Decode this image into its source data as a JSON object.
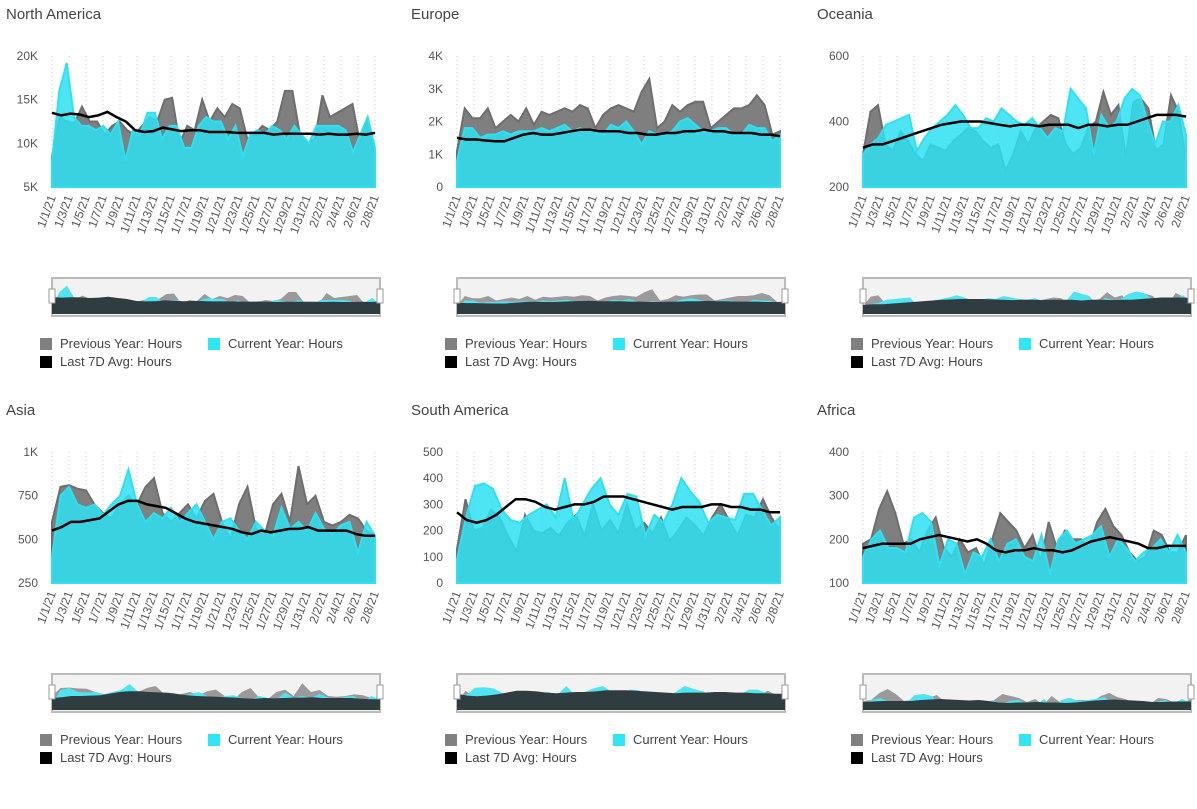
{
  "legend": {
    "prev": "Previous Year: Hours",
    "curr": "Current Year: Hours",
    "avg": "Last 7D Avg: Hours"
  },
  "colors": {
    "prev": "#7f7f7f",
    "curr": "#2ee0f2",
    "avg": "#000000"
  },
  "x_labels": [
    "1/1/21",
    "1/3/21",
    "1/5/21",
    "1/7/21",
    "1/9/21",
    "1/11/21",
    "1/13/21",
    "1/15/21",
    "1/17/21",
    "1/19/21",
    "1/21/21",
    "1/23/21",
    "1/25/21",
    "1/27/21",
    "1/29/21",
    "1/31/21",
    "2/2/21",
    "2/4/21",
    "2/6/21",
    "2/8/21"
  ],
  "chart_data": [
    {
      "type": "area",
      "title": "North America",
      "ylim": [
        5000,
        20000
      ],
      "yticks": [
        5000,
        10000,
        15000,
        20000
      ],
      "ytick_labels": [
        "5K",
        "10K",
        "15K",
        "20K"
      ],
      "grid": "vertical-dotted",
      "legend_position": "bottom",
      "series": [
        {
          "name": "Previous Year: Hours",
          "values": [
            8500,
            13000,
            12500,
            12300,
            14200,
            12500,
            12500,
            11000,
            12000,
            12500,
            11500,
            11000,
            12000,
            13000,
            12500,
            15000,
            15200,
            10000,
            12000,
            11500,
            15000,
            12500,
            14000,
            13000,
            14500,
            14000,
            10500,
            11000,
            12000,
            11500,
            12500,
            16000,
            16000,
            11000,
            10000,
            10500,
            15500,
            13000,
            13500,
            14000,
            14500,
            10000,
            13000,
            9000
          ]
        },
        {
          "name": "Current Year: Hours",
          "values": [
            8000,
            16000,
            19200,
            13000,
            12000,
            12000,
            11500,
            12000,
            11000,
            12500,
            8000,
            11500,
            11000,
            13500,
            13500,
            10500,
            12000,
            12000,
            9500,
            9500,
            12000,
            13000,
            12500,
            12500,
            10500,
            12000,
            8500,
            11000,
            11500,
            11000,
            12000,
            11500,
            10500,
            12000,
            11000,
            10000,
            12000,
            12000,
            12000,
            12000,
            11500,
            9000,
            11000,
            13000,
            9500
          ]
        },
        {
          "name": "Last 7D Avg: Hours",
          "values": [
            13500,
            13200,
            13400,
            13300,
            13000,
            13200,
            13600,
            13000,
            12500,
            11500,
            11300,
            11400,
            11800,
            11600,
            11400,
            11500,
            11500,
            11300,
            11300,
            11300,
            11200,
            11200,
            11200,
            11200,
            11000,
            11100,
            11100,
            11100,
            11100,
            11000,
            11100,
            11000,
            11000,
            11100,
            11000,
            11200
          ]
        }
      ]
    },
    {
      "type": "area",
      "title": "Europe",
      "ylim": [
        0,
        4000
      ],
      "yticks": [
        0,
        1000,
        2000,
        3000,
        4000
      ],
      "ytick_labels": [
        "0",
        "1K",
        "2K",
        "3K",
        "4K"
      ],
      "grid": "vertical-dotted",
      "legend_position": "bottom",
      "series": [
        {
          "name": "Previous Year: Hours",
          "values": [
            1100,
            2400,
            2100,
            2100,
            2400,
            1800,
            2000,
            2200,
            2000,
            2400,
            1900,
            2300,
            2200,
            2300,
            2400,
            2300,
            2500,
            2400,
            1800,
            2200,
            2400,
            2500,
            2400,
            2300,
            2900,
            3300,
            1800,
            2000,
            2500,
            2300,
            2500,
            2600,
            2600,
            1800,
            2000,
            2200,
            2400,
            2400,
            2500,
            2800,
            2500,
            1600,
            1700
          ]
        },
        {
          "name": "Current Year: Hours",
          "values": [
            800,
            1800,
            1800,
            1500,
            1600,
            1600,
            1700,
            1600,
            1700,
            1700,
            1700,
            1800,
            1700,
            1800,
            1900,
            1700,
            1800,
            1700,
            1700,
            1600,
            1900,
            1800,
            2000,
            1700,
            1300,
            1700,
            1600,
            1600,
            1700,
            2000,
            2100,
            1900,
            1700,
            1700,
            1800,
            1800,
            1600,
            1600,
            1900,
            1800,
            1800,
            1400,
            1600
          ]
        },
        {
          "name": "Last 7D Avg: Hours",
          "values": [
            1500,
            1450,
            1450,
            1420,
            1400,
            1400,
            1500,
            1600,
            1650,
            1600,
            1600,
            1650,
            1700,
            1750,
            1750,
            1700,
            1700,
            1700,
            1650,
            1650,
            1600,
            1600,
            1650,
            1650,
            1700,
            1700,
            1750,
            1700,
            1700,
            1650,
            1650,
            1650,
            1600,
            1600,
            1550
          ]
        }
      ]
    },
    {
      "type": "area",
      "title": "Oceania",
      "ylim": [
        200,
        600
      ],
      "yticks": [
        200,
        400,
        600
      ],
      "ytick_labels": [
        "200",
        "400",
        "600"
      ],
      "grid": "vertical-dotted",
      "legend_position": "bottom",
      "series": [
        {
          "name": "Previous Year: Hours",
          "values": [
            300,
            430,
            450,
            330,
            310,
            370,
            340,
            300,
            280,
            330,
            320,
            310,
            340,
            360,
            380,
            370,
            340,
            320,
            330,
            250,
            300,
            370,
            330,
            380,
            400,
            420,
            410,
            330,
            300,
            320,
            380,
            400,
            490,
            420,
            450,
            290,
            460,
            470,
            440,
            310,
            330,
            480,
            430,
            280
          ]
        },
        {
          "name": "Current Year: Hours",
          "values": [
            300,
            330,
            350,
            390,
            400,
            410,
            420,
            310,
            350,
            380,
            400,
            420,
            450,
            420,
            380,
            380,
            410,
            400,
            440,
            420,
            400,
            390,
            410,
            380,
            350,
            380,
            370,
            500,
            470,
            440,
            300,
            420,
            380,
            400,
            470,
            500,
            480,
            400,
            330,
            400,
            400,
            450,
            360
          ]
        },
        {
          "name": "Last 7D Avg: Hours",
          "values": [
            320,
            330,
            330,
            340,
            350,
            360,
            370,
            380,
            390,
            395,
            400,
            400,
            400,
            395,
            390,
            385,
            390,
            390,
            385,
            390,
            390,
            390,
            380,
            390,
            390,
            385,
            390,
            390,
            400,
            410,
            420,
            420,
            420,
            415
          ]
        }
      ]
    },
    {
      "type": "area",
      "title": "Asia",
      "ylim": [
        250,
        1000
      ],
      "yticks": [
        250,
        500,
        750,
        1000
      ],
      "ytick_labels": [
        "250",
        "500",
        "750",
        "1K"
      ],
      "grid": "vertical-dotted",
      "legend_position": "bottom",
      "series": [
        {
          "name": "Previous Year: Hours",
          "values": [
            600,
            800,
            810,
            790,
            780,
            700,
            650,
            620,
            700,
            750,
            700,
            800,
            850,
            650,
            600,
            650,
            700,
            620,
            720,
            760,
            600,
            500,
            700,
            800,
            560,
            520,
            700,
            760,
            600,
            920,
            700,
            750,
            600,
            580,
            600,
            640,
            620,
            550,
            520
          ]
        },
        {
          "name": "Current Year: Hours",
          "values": [
            400,
            750,
            800,
            700,
            680,
            700,
            640,
            700,
            750,
            900,
            700,
            600,
            650,
            620,
            680,
            600,
            650,
            700,
            600,
            500,
            600,
            620,
            550,
            500,
            600,
            550,
            520,
            680,
            560,
            600,
            550,
            650,
            560,
            530,
            580,
            600,
            420,
            600,
            520
          ]
        },
        {
          "name": "Last 7D Avg: Hours",
          "values": [
            550,
            570,
            600,
            600,
            610,
            620,
            660,
            700,
            720,
            720,
            700,
            690,
            680,
            650,
            620,
            600,
            590,
            580,
            570,
            560,
            540,
            530,
            550,
            540,
            550,
            560,
            560,
            570,
            550,
            550,
            550,
            550,
            530,
            520,
            520
          ]
        }
      ]
    },
    {
      "type": "area",
      "title": "South America",
      "ylim": [
        0,
        500
      ],
      "yticks": [
        0,
        100,
        200,
        300,
        400,
        500
      ],
      "ytick_labels": [
        "0",
        "100",
        "200",
        "300",
        "400",
        "500"
      ],
      "grid": "vertical-dotted",
      "legend_position": "bottom",
      "series": [
        {
          "name": "Previous Year: Hours",
          "values": [
            130,
            320,
            200,
            210,
            280,
            250,
            180,
            120,
            260,
            200,
            190,
            210,
            180,
            230,
            260,
            180,
            300,
            200,
            240,
            190,
            300,
            200,
            230,
            190,
            250,
            160,
            200,
            250,
            220,
            180,
            250,
            300,
            240,
            180,
            260,
            250,
            320,
            250,
            200
          ]
        },
        {
          "name": "Current Year: Hours",
          "values": [
            90,
            250,
            370,
            380,
            360,
            280,
            240,
            230,
            260,
            280,
            300,
            250,
            400,
            240,
            300,
            360,
            400,
            300,
            260,
            340,
            330,
            180,
            260,
            230,
            300,
            400,
            350,
            310,
            230,
            260,
            250,
            240,
            340,
            340,
            280,
            220,
            250
          ]
        },
        {
          "name": "Last 7D Avg: Hours",
          "values": [
            270,
            240,
            230,
            240,
            260,
            290,
            320,
            320,
            310,
            290,
            280,
            290,
            300,
            300,
            310,
            330,
            330,
            330,
            320,
            310,
            300,
            290,
            280,
            290,
            290,
            290,
            300,
            300,
            290,
            290,
            280,
            280,
            270,
            270
          ]
        }
      ]
    },
    {
      "type": "area",
      "title": "Africa",
      "ylim": [
        100,
        400
      ],
      "yticks": [
        100,
        200,
        300,
        400
      ],
      "ytick_labels": [
        "100",
        "200",
        "300",
        "400"
      ],
      "grid": "vertical-dotted",
      "legend_position": "bottom",
      "series": [
        {
          "name": "Previous Year: Hours",
          "values": [
            190,
            200,
            270,
            310,
            260,
            190,
            200,
            170,
            220,
            250,
            180,
            160,
            200,
            170,
            180,
            140,
            200,
            260,
            240,
            220,
            180,
            210,
            150,
            240,
            180,
            220,
            200,
            200,
            180,
            240,
            270,
            230,
            210,
            170,
            150,
            160,
            220,
            210,
            170,
            170,
            210
          ]
        },
        {
          "name": "Current Year: Hours",
          "values": [
            160,
            200,
            220,
            180,
            180,
            170,
            250,
            260,
            240,
            140,
            200,
            190,
            120,
            170,
            160,
            200,
            150,
            190,
            200,
            160,
            150,
            210,
            120,
            200,
            220,
            190,
            200,
            210,
            230,
            160,
            200,
            180,
            150,
            170,
            180,
            200,
            170,
            210,
            170
          ]
        },
        {
          "name": "Last 7D Avg: Hours",
          "values": [
            180,
            185,
            190,
            190,
            190,
            190,
            200,
            205,
            210,
            205,
            200,
            195,
            200,
            190,
            175,
            170,
            175,
            175,
            180,
            175,
            175,
            170,
            175,
            185,
            195,
            200,
            205,
            200,
            195,
            190,
            180,
            180,
            185,
            185,
            185
          ]
        }
      ]
    }
  ]
}
